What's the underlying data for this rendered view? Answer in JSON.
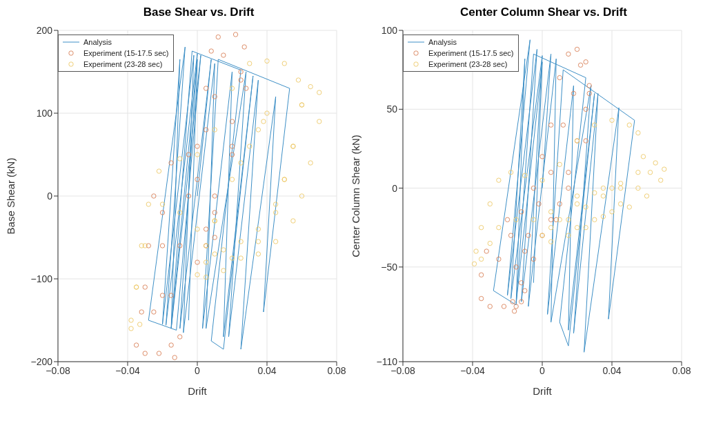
{
  "chart_data": [
    {
      "type": "scatter",
      "title": "Base Shear vs. Drift",
      "xlabel": "Drift",
      "ylabel": "Base Shear (kN)",
      "xlim": [
        -0.08,
        0.08
      ],
      "xticks": [
        -0.08,
        -0.04,
        0,
        0.04,
        0.08
      ],
      "ylim": [
        -200,
        200
      ],
      "yticks": [
        -200,
        -100,
        0,
        100,
        200
      ],
      "grid": true,
      "legend": "top left",
      "series": [
        {
          "name": "Analysis",
          "type": "line",
          "color": "#3d8fc6",
          "marker": "none",
          "line_style": "solid",
          "x": [
            0,
            0.008,
            -0.01,
            0,
            -0.018,
            -0.007,
            -0.028,
            -0.012,
            0.002,
            -0.015,
            -0.003,
            0.025,
            0.008,
            0.015,
            0.032,
            0.015,
            0.02,
            0.003,
            0.012,
            0.053,
            0.038,
            0.045,
            0.025,
            0.035,
            0.018,
            0.028,
            0.005,
            0.01,
            -0.008,
            -0.002,
            -0.02,
            -0.01,
            -0.015,
            0,
            -0.005
          ],
          "values": [
            0,
            165,
            -160,
            172,
            -156,
            180,
            -150,
            -162,
            170,
            -160,
            175,
            152,
            -175,
            -185,
            145,
            -170,
            150,
            -160,
            165,
            130,
            -140,
            120,
            -185,
            140,
            -170,
            150,
            -160,
            160,
            -165,
            170,
            -155,
            165,
            -160,
            165,
            -150
          ]
        },
        {
          "name": "Experiment (15-17.5 sec)",
          "color": "#d9825a",
          "marker": "circle",
          "x": [
            -0.032,
            -0.035,
            -0.03,
            -0.022,
            -0.015,
            -0.013,
            -0.01,
            -0.015,
            -0.02,
            -0.025,
            -0.015,
            -0.005,
            0,
            0.005,
            0.01,
            0.015,
            0.012,
            0.008,
            0.005,
            0,
            -0.005,
            -0.01,
            -0.02,
            -0.025,
            -0.03,
            -0.028,
            -0.02,
            0.005,
            0.01,
            0.02,
            0.025,
            0.022,
            0.027,
            0.028,
            0.02,
            0.01,
            0.005,
            0,
            0.01,
            0.02,
            0.025
          ],
          "values": [
            -140,
            -180,
            -190,
            -190,
            -180,
            -195,
            -170,
            -120,
            -60,
            0,
            40,
            50,
            20,
            80,
            120,
            170,
            192,
            175,
            130,
            60,
            0,
            -60,
            -120,
            -140,
            -110,
            -60,
            -20,
            -40,
            0,
            90,
            150,
            195,
            180,
            130,
            60,
            -20,
            -60,
            -80,
            -50,
            50,
            140
          ]
        },
        {
          "name": "Experiment (23-28 sec)",
          "color": "#edc96a",
          "marker": "circle",
          "x": [
            -0.038,
            -0.038,
            -0.033,
            -0.035,
            -0.032,
            -0.028,
            -0.022,
            -0.01,
            0,
            0.01,
            0.02,
            0.03,
            0.04,
            0.05,
            0.058,
            0.06,
            0.055,
            0.05,
            0.045,
            0.035,
            0.025,
            0.015,
            0.005,
            0,
            0.005,
            0.015,
            0.025,
            0.035,
            0.045,
            0.05,
            0.055,
            0.06,
            0.065,
            0.07,
            0.07,
            0.065,
            0.06,
            0.055,
            0.045,
            0.035,
            0.02,
            0.01,
            0.005,
            0.01,
            0.02,
            0.03,
            0.038,
            0.04,
            0.035,
            0.025,
            0.01,
            0,
            -0.01,
            -0.02,
            -0.03,
            -0.035
          ],
          "values": [
            -150,
            -160,
            -155,
            -110,
            -60,
            -10,
            30,
            45,
            50,
            80,
            130,
            160,
            163,
            160,
            140,
            110,
            60,
            20,
            -10,
            -40,
            -55,
            -65,
            -80,
            -95,
            -98,
            -90,
            -75,
            -55,
            -20,
            20,
            60,
            110,
            132,
            125,
            90,
            40,
            0,
            -30,
            -55,
            -70,
            -75,
            -70,
            -60,
            -30,
            20,
            60,
            90,
            100,
            80,
            40,
            -30,
            -40,
            -20,
            -10,
            -60,
            -110
          ]
        }
      ]
    },
    {
      "type": "scatter",
      "title": "Center Column Shear vs. Drift",
      "xlabel": "Drift",
      "ylabel": "Center Column Shear (kN)",
      "xlim": [
        -0.08,
        0.08
      ],
      "xticks": [
        -0.08,
        -0.04,
        0,
        0.04,
        0.08
      ],
      "ylim": [
        -110,
        100
      ],
      "yticks": [
        -110,
        -50,
        0,
        50,
        100
      ],
      "grid": true,
      "legend": "top left",
      "series": [
        {
          "name": "Analysis",
          "type": "line",
          "color": "#3d8fc6",
          "marker": "none",
          "line_style": "solid",
          "x": [
            0,
            0.005,
            -0.012,
            -0.003,
            -0.02,
            -0.007,
            -0.028,
            -0.015,
            -0.005,
            0.025,
            0.01,
            0.015,
            0.03,
            0.015,
            0.018,
            0.003,
            0.012,
            0.053,
            0.038,
            0.044,
            0.024,
            0.032,
            0.018,
            0.028,
            0.005,
            0.008,
            -0.008,
            0,
            -0.018,
            -0.01,
            -0.015,
            0,
            -0.005
          ],
          "values": [
            0,
            85,
            -72,
            88,
            -68,
            94,
            -65,
            -74,
            85,
            70,
            -85,
            -100,
            60,
            -90,
            65,
            -80,
            75,
            43,
            -83,
            51,
            -104,
            60,
            -92,
            65,
            -85,
            82,
            -75,
            84,
            -70,
            82,
            -73,
            80,
            -60
          ]
        },
        {
          "name": "Experiment (15-17.5 sec)",
          "color": "#d9825a",
          "marker": "circle",
          "x": [
            -0.035,
            -0.035,
            -0.03,
            -0.022,
            -0.017,
            -0.016,
            -0.012,
            -0.015,
            -0.018,
            -0.02,
            -0.012,
            -0.005,
            0,
            0.005,
            0.01,
            0.015,
            0.02,
            0.025,
            0.027,
            0.025,
            0.02,
            0.015,
            0.01,
            0.005,
            0,
            -0.005,
            -0.01,
            -0.015,
            -0.012,
            -0.008,
            -0.002,
            0.005,
            0.012,
            0.018,
            0.022,
            0.027,
            0.025,
            0.015,
            0.008,
            -0.01,
            -0.025,
            -0.032
          ],
          "values": [
            -55,
            -70,
            -75,
            -75,
            -72,
            -78,
            -72,
            -50,
            -30,
            -20,
            -15,
            0,
            20,
            40,
            70,
            85,
            88,
            80,
            65,
            50,
            30,
            10,
            -10,
            -20,
            -30,
            -45,
            -65,
            -75,
            -60,
            -30,
            -10,
            10,
            40,
            60,
            78,
            60,
            30,
            0,
            -20,
            -40,
            -45,
            -40
          ]
        },
        {
          "name": "Experiment (23-28 sec)",
          "color": "#edc96a",
          "marker": "circle",
          "x": [
            -0.039,
            -0.038,
            -0.035,
            -0.03,
            -0.025,
            -0.018,
            -0.01,
            0,
            0.01,
            0.02,
            0.03,
            0.04,
            0.05,
            0.055,
            0.058,
            0.055,
            0.045,
            0.035,
            0.025,
            0.015,
            0.005,
            0,
            0.005,
            0.015,
            0.025,
            0.035,
            0.045,
            0.055,
            0.062,
            0.065,
            0.07,
            0.068,
            0.06,
            0.05,
            0.04,
            0.03,
            0.02,
            0.01,
            0.02,
            0.03,
            0.04,
            0.045,
            0.035,
            0.02,
            0.005,
            -0.005,
            -0.015,
            -0.025,
            -0.03,
            -0.035
          ],
          "values": [
            -48,
            -40,
            -25,
            -10,
            5,
            10,
            8,
            5,
            15,
            30,
            40,
            43,
            40,
            35,
            20,
            10,
            0,
            -5,
            -12,
            -20,
            -25,
            -30,
            -34,
            -30,
            -25,
            -18,
            -10,
            0,
            10,
            16,
            12,
            5,
            -5,
            -12,
            -15,
            -20,
            -25,
            -20,
            -10,
            -3,
            0,
            3,
            0,
            -5,
            -15,
            -20,
            -20,
            -25,
            -35,
            -45
          ]
        }
      ]
    }
  ]
}
